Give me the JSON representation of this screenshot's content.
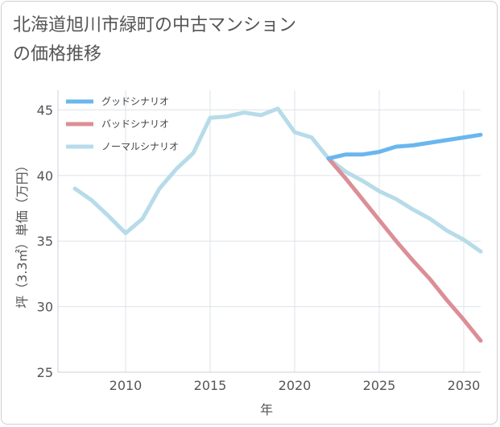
{
  "chart_data": {
    "type": "line",
    "title": "北海道旭川市緑町の中古マンションの価格推移",
    "xlabel": "年",
    "ylabel": "坪（3.3㎡）単価（万円）",
    "xlim": [
      2006,
      2031
    ],
    "ylim": [
      25,
      46.5
    ],
    "xticks": [
      2010,
      2015,
      2020,
      2025,
      2030
    ],
    "yticks": [
      25,
      30,
      35,
      40,
      45
    ],
    "grid": true,
    "legend": "top-left",
    "series": [
      {
        "name": "グッドシナリオ",
        "color": "#6bb6ee",
        "x": [
          2022,
          2023,
          2024,
          2025,
          2026,
          2027,
          2028,
          2029,
          2030,
          2031
        ],
        "y": [
          41.3,
          41.6,
          41.6,
          41.8,
          42.2,
          42.3,
          42.5,
          42.7,
          42.9,
          43.1
        ]
      },
      {
        "name": "バッドシナリオ",
        "color": "#dc8e96",
        "x": [
          2022,
          2023,
          2024,
          2025,
          2026,
          2027,
          2028,
          2029,
          2030,
          2031
        ],
        "y": [
          41.3,
          39.8,
          38.2,
          36.6,
          35.0,
          33.5,
          32.1,
          30.5,
          29.0,
          27.4
        ]
      },
      {
        "name": "ノーマルシナリオ",
        "color": "#b7dbe9",
        "x": [
          2007,
          2008,
          2009,
          2010,
          2011,
          2012,
          2013,
          2014,
          2015,
          2016,
          2017,
          2018,
          2019,
          2020,
          2021,
          2022,
          2023,
          2024,
          2025,
          2026,
          2027,
          2028,
          2029,
          2030,
          2031
        ],
        "y": [
          39.0,
          38.1,
          36.9,
          35.6,
          36.7,
          39.0,
          40.5,
          41.7,
          44.4,
          44.5,
          44.8,
          44.6,
          45.1,
          43.3,
          42.9,
          41.3,
          40.3,
          39.6,
          38.8,
          38.2,
          37.4,
          36.7,
          35.8,
          35.1,
          34.2
        ]
      }
    ]
  }
}
